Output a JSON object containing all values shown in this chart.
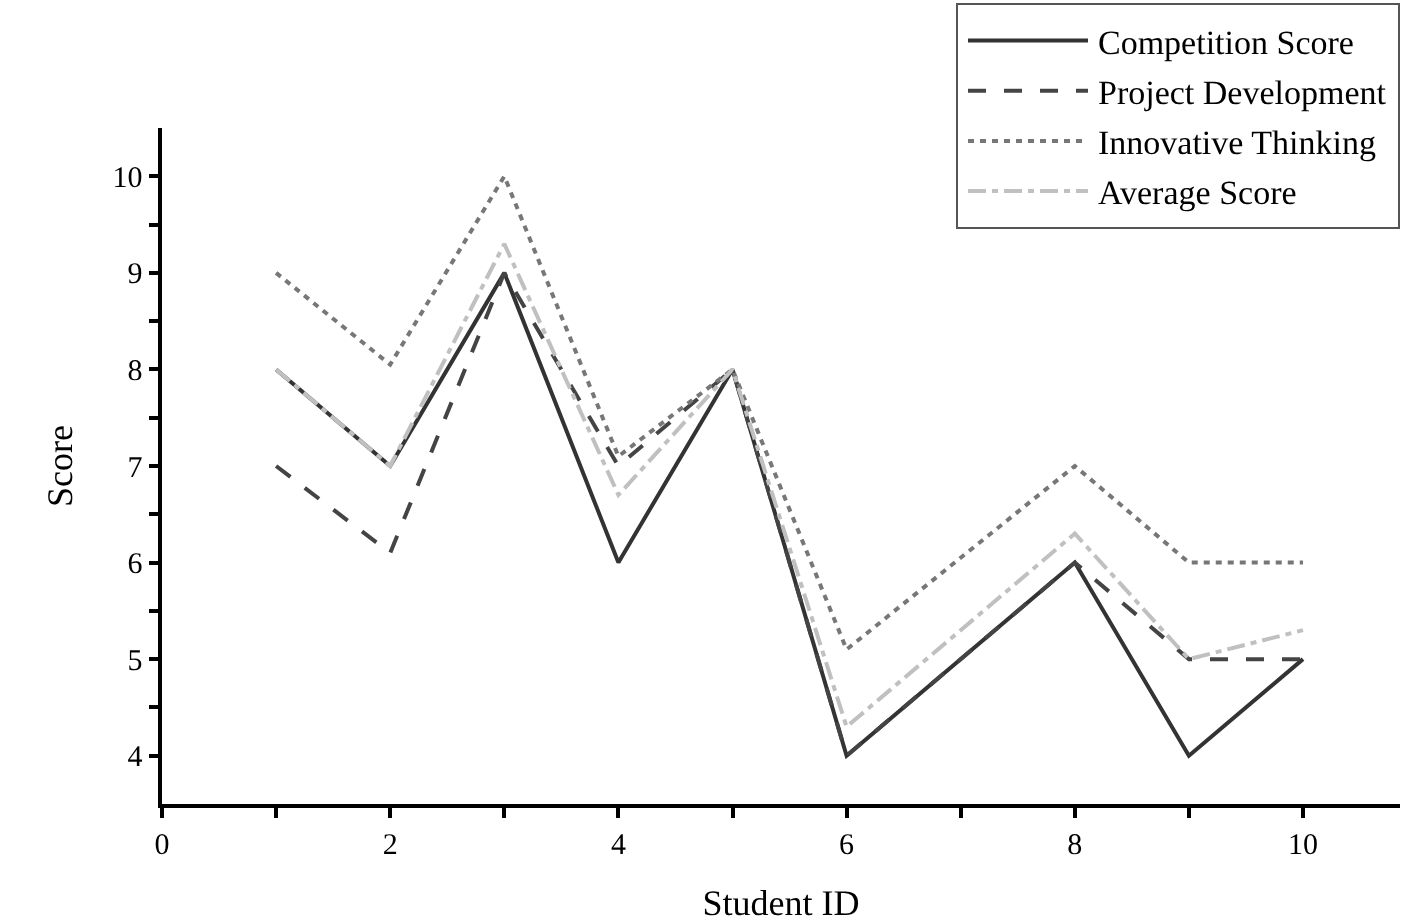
{
  "chart_data": {
    "type": "line",
    "xlabel": "Student ID",
    "ylabel": "Score",
    "x": [
      1,
      2,
      3,
      4,
      5,
      6,
      8,
      9,
      10
    ],
    "series": [
      {
        "name": "Competition Score",
        "color": "#333333",
        "line_style": "solid",
        "values": [
          8,
          7,
          9,
          6,
          8,
          4,
          6,
          4,
          5
        ]
      },
      {
        "name": "Project Development",
        "color": "#444444",
        "line_style": "dashed",
        "values": [
          7,
          6.1,
          9,
          7,
          8,
          4,
          6,
          5,
          5
        ]
      },
      {
        "name": "Innovative Thinking",
        "color": "#777777",
        "line_style": "dotted",
        "values": [
          9,
          8.05,
          10,
          7.1,
          8,
          5.1,
          7,
          6,
          6
        ]
      },
      {
        "name": "Average Score",
        "color": "#c0c0c0",
        "line_style": "dashdot",
        "values": [
          8,
          7,
          9.3,
          6.7,
          8,
          4.3,
          6.3,
          5,
          5.3
        ]
      }
    ],
    "xlim": [
      0,
      10.85
    ],
    "ylim": [
      3.5,
      10.5
    ],
    "xticks": [
      0,
      {
        "value": 1,
        "label": null
      },
      2,
      {
        "value": 3,
        "label": null
      },
      4,
      {
        "value": 5,
        "label": null
      },
      6,
      {
        "value": 7,
        "label": null
      },
      8,
      {
        "value": 9,
        "label": null
      },
      10
    ],
    "yticks": [
      4,
      {
        "value": 4.5,
        "label": null
      },
      5,
      {
        "value": 5.5,
        "label": null
      },
      6,
      {
        "value": 6.5,
        "label": null
      },
      7,
      {
        "value": 7.5,
        "label": null
      },
      8,
      {
        "value": 8.5,
        "label": null
      },
      9,
      {
        "value": 9.5,
        "label": null
      },
      10
    ],
    "legend": "top right",
    "marker": "none"
  }
}
